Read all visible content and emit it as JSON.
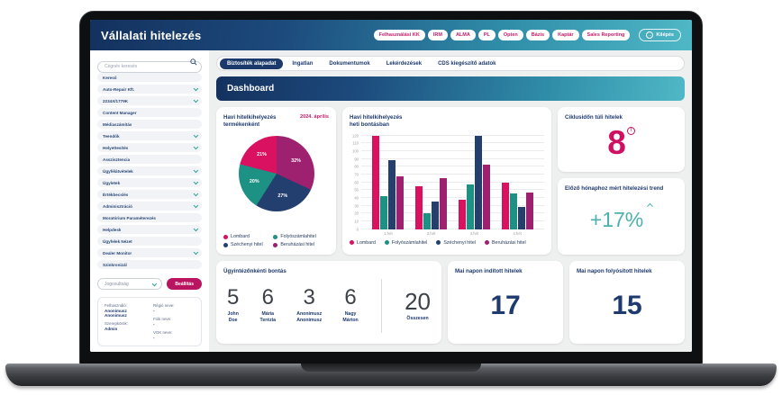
{
  "app": {
    "title": "Vállalati hitelezés"
  },
  "header": {
    "pills": [
      "Felhasználási KK",
      "IRM",
      "ALMA",
      "PL",
      "Opten",
      "Bázis",
      "Kaptár",
      "Sales Reporting"
    ],
    "logout_label": "Kilépés",
    "logout_icon": "→"
  },
  "sidebar": {
    "search_placeholder": "Cégnév keresés",
    "items": [
      {
        "label": "Kereső",
        "chevron": false
      },
      {
        "label": "Auto-Repair Kft.",
        "chevron": true
      },
      {
        "label": "2234X/1779K",
        "chevron": true
      },
      {
        "label": "Content Manager",
        "chevron": false
      },
      {
        "label": "Médiaszámítás",
        "chevron": false
      },
      {
        "label": "Teendők",
        "chevron": true
      },
      {
        "label": "Helyettesítés",
        "chevron": true
      },
      {
        "label": "Asszisztencia",
        "chevron": false
      },
      {
        "label": "Ügyfélátvételek",
        "chevron": true
      },
      {
        "label": "Ügyletek",
        "chevron": true
      },
      {
        "label": "Értékbecslés",
        "chevron": true
      },
      {
        "label": "Adminisztráció",
        "chevron": true
      },
      {
        "label": "Moratórium Paraméterezés",
        "chevron": false
      },
      {
        "label": "Helpdesk",
        "chevron": true
      },
      {
        "label": "Ügyfelek Nézet",
        "chevron": false
      },
      {
        "label": "Dealer Monitor",
        "chevron": true
      },
      {
        "label": "Szinkronizál",
        "chevron": false
      }
    ],
    "role_dropdown_value": "Jogosultság",
    "apply_button_label": "Beállítás",
    "user_card": {
      "fields": [
        {
          "col": "left",
          "label": "Felhasználó:",
          "value": "Anonimusz\nAnonimusz"
        },
        {
          "col": "left",
          "label": "Szerepkörök:",
          "value": "Admin"
        },
        {
          "col": "right",
          "label": "Régió neve:",
          "value": "-"
        },
        {
          "col": "right",
          "label": "Fiók neve:",
          "value": "-"
        },
        {
          "col": "right",
          "label": "VOK neve:",
          "value": "-"
        }
      ]
    }
  },
  "tabs": [
    {
      "label": "Biztosíték alapadat",
      "active": true
    },
    {
      "label": "Ingatlan",
      "active": false
    },
    {
      "label": "Dokumentumok",
      "active": false
    },
    {
      "label": "Lekérdezések",
      "active": false
    },
    {
      "label": "CDS kiegészítő adatok",
      "active": false
    }
  ],
  "banner": {
    "title": "Dashboard"
  },
  "chart_data": [
    {
      "type": "pie",
      "title": "Havi hitelkihelyezés termékenként",
      "period_label": "2024. április",
      "slices": [
        {
          "label": "Beruházási hitel",
          "value": 32,
          "color": "#9e2170"
        },
        {
          "label": "Széchenyi hitel",
          "value": 27,
          "color": "#223f70"
        },
        {
          "label": "Folyószámlahitel",
          "value": 20,
          "color": "#1d9184"
        },
        {
          "label": "Lombard",
          "value": 21,
          "color": "#da1160"
        }
      ],
      "legend_order": [
        "Lombard",
        "Folyószámlahitel",
        "Széchenyi hitel",
        "Beruházási hitel"
      ],
      "label_unit": "%"
    },
    {
      "type": "bar",
      "title": "Havi hitelkihelyezés\nheti bontásban",
      "categories": [
        "1.hét",
        "2.hét",
        "3.hét",
        "4.hét"
      ],
      "series": [
        {
          "name": "Lombard",
          "color": "#da1160",
          "values": [
            120,
            55,
            37,
            60
          ]
        },
        {
          "name": "Folyószámlahitel",
          "color": "#1d9184",
          "values": [
            42,
            20,
            57,
            46
          ]
        },
        {
          "name": "Széchenyi hitel",
          "color": "#223f70",
          "values": [
            88,
            35,
            120,
            28
          ]
        },
        {
          "name": "Beruházási hitel",
          "color": "#9e2170",
          "values": [
            67,
            65,
            82,
            47
          ]
        }
      ],
      "ylim": [
        0,
        120
      ],
      "ytick_step": 10,
      "grid": true,
      "legend_position": "bottom"
    }
  ],
  "stat_cards": {
    "overdue": {
      "title": "Ciklusidőn túli hitelek",
      "value": "8",
      "badge": "!"
    },
    "trend": {
      "title": "Előző hónaphoz mért hitelezési trend",
      "value": "+17%"
    },
    "per_agent": {
      "title": "Ügyintézőnkénti bontás",
      "agents": [
        {
          "value": "5",
          "name": "John\nDoe"
        },
        {
          "value": "6",
          "name": "Mária\nTerézia"
        },
        {
          "value": "3",
          "name": "Anonimusz\nAnonimusz"
        },
        {
          "value": "6",
          "name": "Nagy\nMárton"
        }
      ],
      "total": {
        "value": "20",
        "label": "Összesen"
      }
    },
    "started": {
      "title": "Mai napon indított hitelek",
      "value": "17"
    },
    "disbursed": {
      "title": "Mai napon folyósított hitelek",
      "value": "15"
    }
  },
  "colors": {
    "navy_text": "#1e3a6e",
    "magenta": "#cf0f60",
    "trend_teal": "#4cb0ae",
    "header_gradient_start": "#14315e",
    "header_gradient_end": "#4fb8c6"
  }
}
